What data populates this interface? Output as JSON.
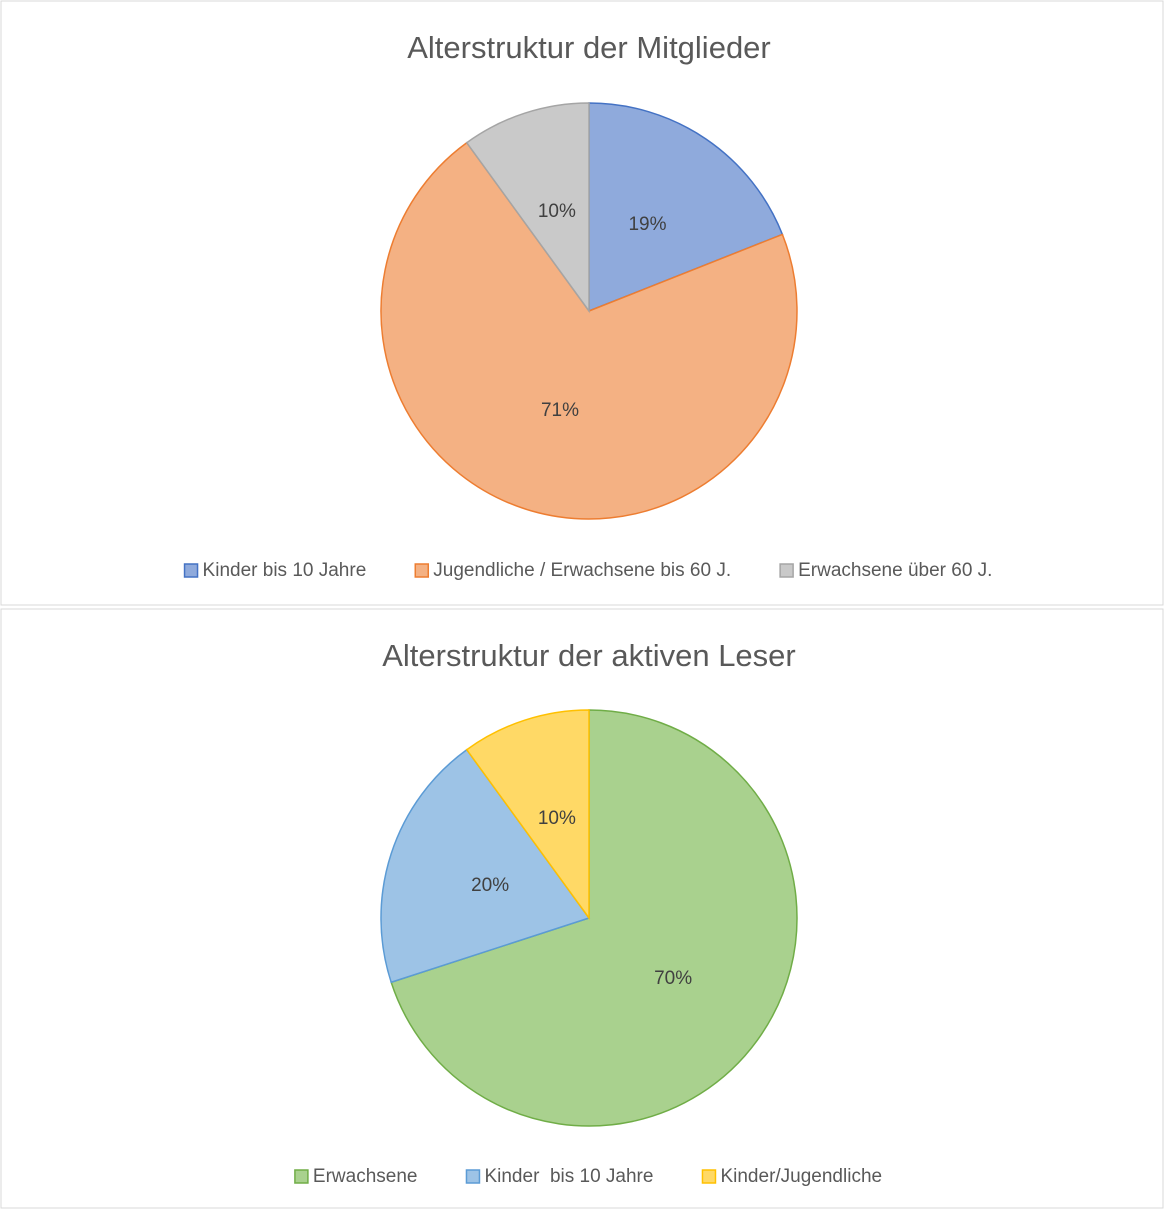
{
  "chart_data": [
    {
      "type": "pie",
      "title": "Alterstruktur der Mitglieder",
      "categories": [
        "Kinder bis 10 Jahre",
        "Jugendliche / Erwachsene bis 60 J.",
        "Erwachsene über 60 J."
      ],
      "values": [
        19,
        71,
        10
      ],
      "value_labels": [
        "19%",
        "71%",
        "10%"
      ],
      "colors": [
        "#8faadc",
        "#f4b183",
        "#c9c9c9"
      ],
      "edge_colors": [
        "#4472c4",
        "#ed7d31",
        "#a5a5a5"
      ]
    },
    {
      "type": "pie",
      "title": "Alterstruktur der aktiven Leser",
      "categories": [
        "Erwachsene",
        "Kinder  bis 10 Jahre",
        "Kinder/Jugendliche"
      ],
      "values": [
        70,
        20,
        10
      ],
      "value_labels": [
        "70%",
        "20%",
        "10%"
      ],
      "colors": [
        "#a9d18e",
        "#9dc3e6",
        "#ffd966"
      ],
      "edge_colors": [
        "#70ad47",
        "#5b9bd5",
        "#ffc000"
      ]
    }
  ]
}
